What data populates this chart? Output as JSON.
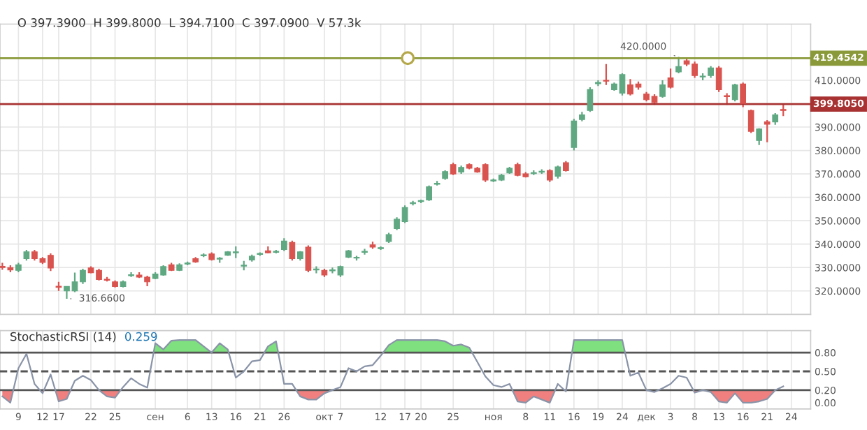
{
  "chart_data": [
    {
      "type": "candlestick",
      "categories": [
        null,
        null,
        null,
        null,
        null,
        null,
        null,
        null,
        null,
        null,
        null,
        null,
        null,
        null,
        null,
        null,
        null,
        null,
        null,
        null,
        null,
        null,
        null,
        null,
        null,
        null,
        null,
        null,
        null,
        null,
        null,
        null,
        null,
        null,
        null,
        null,
        null,
        null,
        null,
        null,
        null,
        null,
        null,
        null,
        null,
        null,
        null,
        null,
        null,
        null,
        null,
        null,
        null,
        null,
        null,
        null,
        null,
        null,
        null,
        null,
        null,
        null,
        null,
        null,
        null,
        null,
        null,
        null,
        null,
        null,
        null,
        null,
        null,
        null,
        null,
        null,
        null,
        null,
        null,
        null,
        null,
        null,
        null,
        null,
        null,
        null,
        null,
        null,
        null,
        null,
        null,
        null,
        null,
        null,
        null,
        null,
        null,
        null,
        null
      ],
      "ohlc": [
        [
          330.5,
          332,
          329,
          330
        ],
        [
          330,
          331,
          328,
          329
        ],
        [
          328.8,
          332,
          328,
          331.2
        ],
        [
          333.8,
          337.5,
          333,
          336.7
        ],
        [
          336.7,
          337.5,
          333,
          333.8
        ],
        [
          333.8,
          334.5,
          331.5,
          332.2
        ],
        [
          335.2,
          336,
          328.5,
          329.8
        ],
        [
          322,
          323.9,
          320,
          321.5
        ],
        [
          320,
          322,
          316.66,
          321.9
        ],
        [
          320,
          327.8,
          319.5,
          323.9
        ],
        [
          323.9,
          329.5,
          323,
          328.8
        ],
        [
          329.8,
          330.5,
          327.5,
          327.8
        ],
        [
          328.8,
          329.5,
          324.5,
          324.9
        ],
        [
          325,
          326,
          324,
          324.6
        ],
        [
          323.9,
          324.5,
          321.5,
          321.9
        ],
        [
          321.9,
          324.5,
          321.5,
          323.9
        ],
        [
          326.5,
          328,
          326,
          326.9
        ],
        [
          326.8,
          328,
          325.5,
          325.9
        ],
        [
          325.9,
          326.5,
          322,
          323.9
        ],
        [
          325.3,
          328,
          325,
          327.2
        ],
        [
          326.8,
          331,
          326.5,
          330.4
        ],
        [
          331.2,
          332,
          328.5,
          328.8
        ],
        [
          328.8,
          331.8,
          328.5,
          331.2
        ],
        [
          331.5,
          332.5,
          331,
          331.9
        ],
        [
          333.8,
          334.5,
          332,
          332.4
        ],
        [
          335,
          336,
          334.5,
          335.3
        ],
        [
          335.8,
          336.5,
          333,
          333.4
        ],
        [
          333.6,
          334.5,
          332,
          333.9
        ],
        [
          335.2,
          337,
          335,
          336.7
        ],
        [
          336.3,
          339,
          334,
          336.5
        ],
        [
          330.6,
          332.8,
          328.8,
          331
        ],
        [
          333.2,
          335.5,
          332.5,
          334.8
        ],
        [
          335.6,
          336.5,
          335,
          335.9
        ],
        [
          337.1,
          339,
          336,
          336.3
        ],
        [
          336.5,
          337.5,
          336,
          336.8
        ],
        [
          337.7,
          342.5,
          337,
          341.3
        ],
        [
          340.7,
          341.5,
          333,
          333.8
        ],
        [
          333.8,
          337,
          333,
          336.7
        ],
        [
          338.7,
          339.5,
          328,
          328.8
        ],
        [
          329,
          330.5,
          327.5,
          329.3
        ],
        [
          328.8,
          329.5,
          326,
          326.8
        ],
        [
          328.6,
          330,
          327.5,
          328.9
        ],
        [
          326.8,
          330.8,
          326,
          330.4
        ],
        [
          334.4,
          337.5,
          334,
          337.1
        ],
        [
          334,
          335,
          333,
          334.2
        ],
        [
          336.5,
          338,
          335.5,
          336.8
        ],
        [
          339.7,
          341,
          338,
          338.7
        ],
        [
          338.1,
          339,
          337.5,
          338.4
        ],
        [
          341.1,
          344.8,
          340.5,
          344.1
        ],
        [
          346.6,
          351.5,
          346,
          350.6
        ],
        [
          349.6,
          356.5,
          349,
          355.6
        ],
        [
          357.3,
          358.5,
          356.5,
          357.6
        ],
        [
          358.2,
          359,
          357.5,
          358.5
        ],
        [
          358.9,
          365,
          358.5,
          364.5
        ],
        [
          365.6,
          367,
          365,
          366
        ],
        [
          368,
          371.5,
          367.5,
          371
        ],
        [
          374,
          374.8,
          369.5,
          370
        ],
        [
          370.8,
          373.5,
          370,
          372.8
        ],
        [
          374,
          374.5,
          372,
          372.4
        ],
        [
          372.4,
          373,
          370.5,
          370.8
        ],
        [
          374,
          374.5,
          366.5,
          367.4
        ],
        [
          367,
          368,
          366.5,
          367.4
        ],
        [
          367.4,
          370,
          367,
          369.4
        ],
        [
          370.4,
          373,
          370,
          372.4
        ],
        [
          374,
          374.8,
          369,
          369.4
        ],
        [
          370,
          370.8,
          368.5,
          368.8
        ],
        [
          370.1,
          371.5,
          369.5,
          370.3
        ],
        [
          370.7,
          372,
          370,
          370.9
        ],
        [
          371.4,
          372,
          366.5,
          367.4
        ],
        [
          369,
          373.5,
          368,
          373
        ],
        [
          374.8,
          375.5,
          371,
          371.4
        ],
        [
          381.3,
          393.5,
          380,
          392.6
        ],
        [
          393.2,
          396.5,
          392.5,
          395.2
        ],
        [
          397.1,
          407,
          396.5,
          406
        ],
        [
          408.5,
          410,
          407.5,
          409.1
        ],
        [
          410,
          416.9,
          408,
          409.6
        ],
        [
          406,
          409,
          405.5,
          408.4
        ],
        [
          404.5,
          413,
          403.5,
          412.4
        ],
        [
          408,
          410.5,
          403.5,
          404.1
        ],
        [
          408.4,
          409.5,
          406,
          407
        ],
        [
          404.1,
          405,
          401,
          401.7
        ],
        [
          403.1,
          404,
          399.5,
          400.5
        ],
        [
          403.1,
          410,
          402.5,
          408
        ],
        [
          411,
          415,
          406.5,
          407
        ],
        [
          413.6,
          420,
          413,
          415.9
        ],
        [
          418.3,
          419.5,
          416,
          416.9
        ],
        [
          416.9,
          418,
          411,
          412
        ],
        [
          411.4,
          413,
          410,
          411.7
        ],
        [
          412,
          416,
          411,
          415.3
        ],
        [
          415.3,
          416,
          405,
          406
        ],
        [
          403.3,
          404.5,
          399.5,
          403
        ],
        [
          401.7,
          408.5,
          401,
          408
        ],
        [
          408.4,
          409,
          398.5,
          400.1
        ],
        [
          397.1,
          397.5,
          387.5,
          388.2
        ],
        [
          384.3,
          389.5,
          382.3,
          389.2
        ],
        [
          392.2,
          393,
          383.5,
          391.2
        ],
        [
          392.2,
          396,
          391,
          395.2
        ],
        [
          397.39,
          399.8,
          394.71,
          397.09
        ],
        null
      ],
      "ylim": [
        310,
        434
      ],
      "yticks": [
        {
          "value": 320,
          "label": "320.0000"
        },
        {
          "value": 330,
          "label": "330.0000"
        },
        {
          "value": 340,
          "label": "340.0000"
        },
        {
          "value": 350,
          "label": "350.0000"
        },
        {
          "value": 360,
          "label": "360.0000"
        },
        {
          "value": 370,
          "label": "370.0000"
        },
        {
          "value": 380,
          "label": "380.0000"
        },
        {
          "value": 390,
          "label": "390.0000"
        },
        {
          "value": 400,
          "label": null
        },
        {
          "value": 410,
          "label": "410.0000"
        }
      ],
      "grid": true,
      "tick_labels": "y",
      "ref_lines": [
        {
          "axis": "y",
          "value": 419.4542,
          "label": "419.4542",
          "color": "#8a9a3a"
        },
        {
          "axis": "y",
          "value": 399.805,
          "label": "399.8050",
          "color": "#a83232"
        }
      ],
      "annotations": [
        "O 397.3900  H 399.8000  L 394.7100  C 397.0900  V 57.3k",
        "316.6600",
        "420.0000"
      ]
    },
    {
      "type": "line",
      "title": "StochasticRSI (14)",
      "categories": [
        null,
        null,
        "9",
        null,
        null,
        "12",
        null,
        "17",
        null,
        null,
        null,
        "22",
        null,
        null,
        "25",
        null,
        null,
        null,
        null,
        "сен",
        null,
        null,
        null,
        "6",
        null,
        null,
        "13",
        null,
        null,
        "16",
        null,
        null,
        "21",
        null,
        null,
        "26",
        null,
        null,
        null,
        null,
        "окт",
        null,
        "7",
        null,
        null,
        null,
        null,
        "12",
        null,
        null,
        "17",
        null,
        "20",
        null,
        null,
        null,
        "25",
        null,
        null,
        null,
        null,
        "ноя",
        null,
        null,
        null,
        "8",
        null,
        null,
        "11",
        null,
        null,
        "16",
        null,
        null,
        "19",
        null,
        null,
        "24",
        null,
        null,
        "дек",
        null,
        null,
        "3",
        null,
        null,
        "8",
        null,
        null,
        "13",
        null,
        null,
        "16",
        null,
        null,
        "21",
        null,
        null,
        "24"
      ],
      "series": [
        {
          "color": "#8a94a8",
          "values": [
            0.1,
            0.0,
            0.55,
            0.78,
            0.3,
            0.15,
            0.45,
            0.02,
            0.06,
            0.35,
            0.43,
            0.36,
            0.2,
            0.1,
            0.08,
            0.25,
            0.39,
            0.3,
            0.24,
            0.95,
            0.85,
            0.99,
            1.0,
            1.0,
            1.0,
            0.9,
            0.8,
            0.95,
            0.85,
            0.4,
            0.5,
            0.66,
            0.68,
            0.9,
            0.98,
            0.3,
            0.3,
            0.1,
            0.05,
            0.05,
            0.15,
            0.2,
            0.25,
            0.55,
            0.5,
            0.58,
            0.6,
            0.75,
            0.92,
            1.0,
            1.0,
            1.0,
            1.0,
            1.0,
            1.0,
            0.98,
            0.91,
            0.93,
            0.88,
            0.65,
            0.42,
            0.28,
            0.25,
            0.3,
            0.02,
            0.0,
            0.1,
            0.05,
            0.0,
            0.3,
            0.18,
            1.0,
            1.0,
            1.0,
            1.0,
            1.0,
            1.0,
            1.0,
            0.43,
            0.48,
            0.2,
            0.17,
            0.23,
            0.3,
            0.43,
            0.4,
            0.16,
            0.2,
            0.17,
            0.02,
            0.0,
            0.15,
            0.0,
            0.0,
            0.02,
            0.06,
            0.2,
            0.26,
            null
          ]
        }
      ],
      "ylim": [
        -0.1,
        1.15
      ],
      "yticks": [
        {
          "value": 0,
          "label": "0.00"
        },
        {
          "value": 0.2,
          "label": "0.20"
        },
        {
          "value": 0.5,
          "label": "0.50"
        },
        {
          "value": 0.8,
          "label": "0.80"
        }
      ],
      "grid": "x",
      "ref_lines": [
        {
          "axis": "y",
          "value": 0.8,
          "line_style": "solid",
          "color": "#555555"
        },
        {
          "axis": "y",
          "value": 0.5,
          "line_style": "dashed",
          "color": "#555555"
        },
        {
          "axis": "y",
          "value": 0.2,
          "line_style": "solid",
          "color": "#555555"
        }
      ],
      "annotations": [
        "0.259"
      ]
    }
  ]
}
